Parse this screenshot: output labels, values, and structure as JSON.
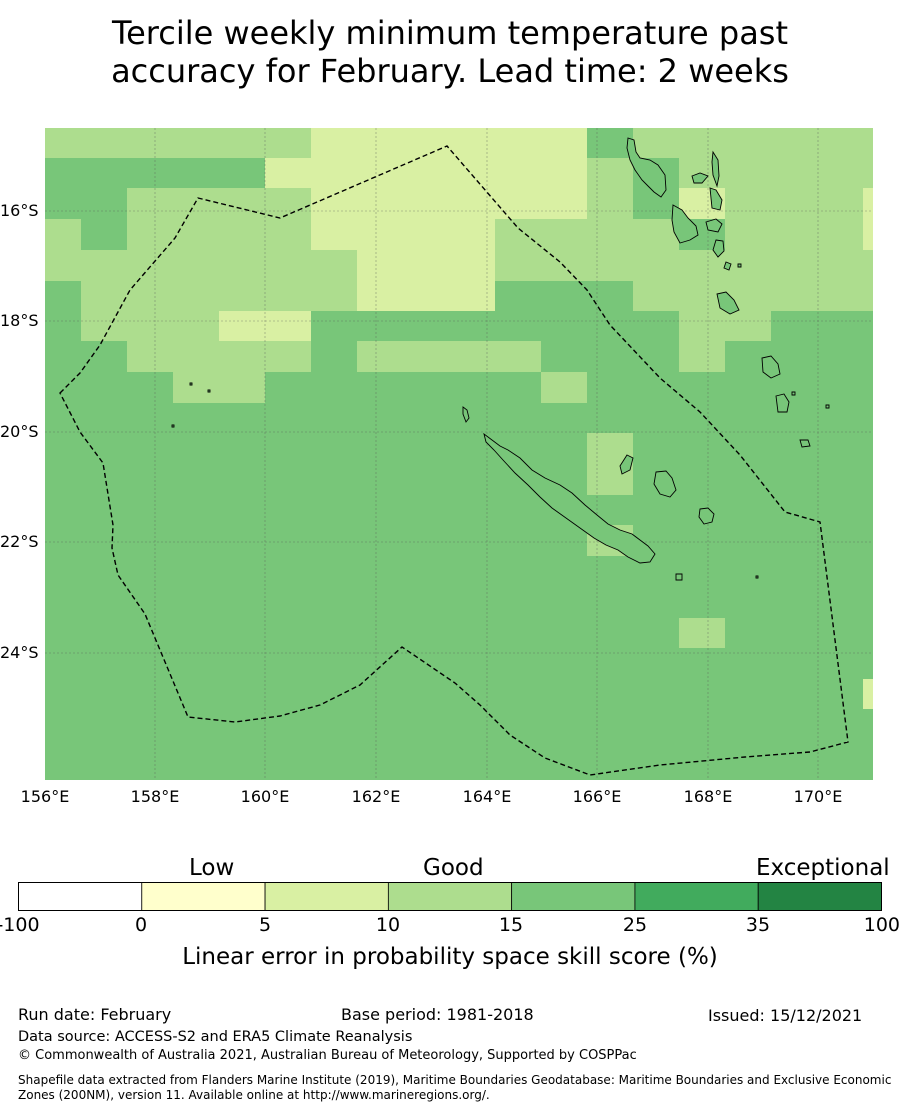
{
  "title_line1": "Tercile weekly minimum temperature past",
  "title_line2": "accuracy for February. Lead time: 2 weeks",
  "map": {
    "lat_labels": [
      "16°S",
      "18°S",
      "20°S",
      "22°S",
      "24°S"
    ],
    "lon_labels": [
      "156°E",
      "158°E",
      "160°E",
      "162°E",
      "164°E",
      "166°E",
      "168°E",
      "170°E"
    ],
    "background_color": "#78c679",
    "boundary_style": "dashed"
  },
  "colorbar": {
    "categories": [
      "Low",
      "Good",
      "Exceptional"
    ],
    "ticks": [
      "-100",
      "0",
      "5",
      "10",
      "15",
      "25",
      "35",
      "100"
    ],
    "colors": [
      "#ffffff",
      "#ffffcc",
      "#d9f0a3",
      "#addd8e",
      "#78c679",
      "#41ab5d",
      "#238443"
    ],
    "label": "Linear error in probability space skill score (%)"
  },
  "footer": {
    "run_date": "Run date: February",
    "base_period": "Base period: 1981-2018",
    "issued": "Issued: 15/12/2021",
    "data_source": "Data source: ACCESS-S2 and ERA5 Climate Reanalysis",
    "copyright": "© Commonwealth of Australia 2021, Australian Bureau of Meteorology, Supported by COSPPac",
    "shapefile1": "Shapefile data extracted from Flanders Marine Institute (2019), Maritime Boundaries Geodatabase: Maritime Boundaries and Exclusive Economic",
    "shapefile2": "Zones (200NM), version 11. Available online at http://www.marineregions.org/."
  }
}
